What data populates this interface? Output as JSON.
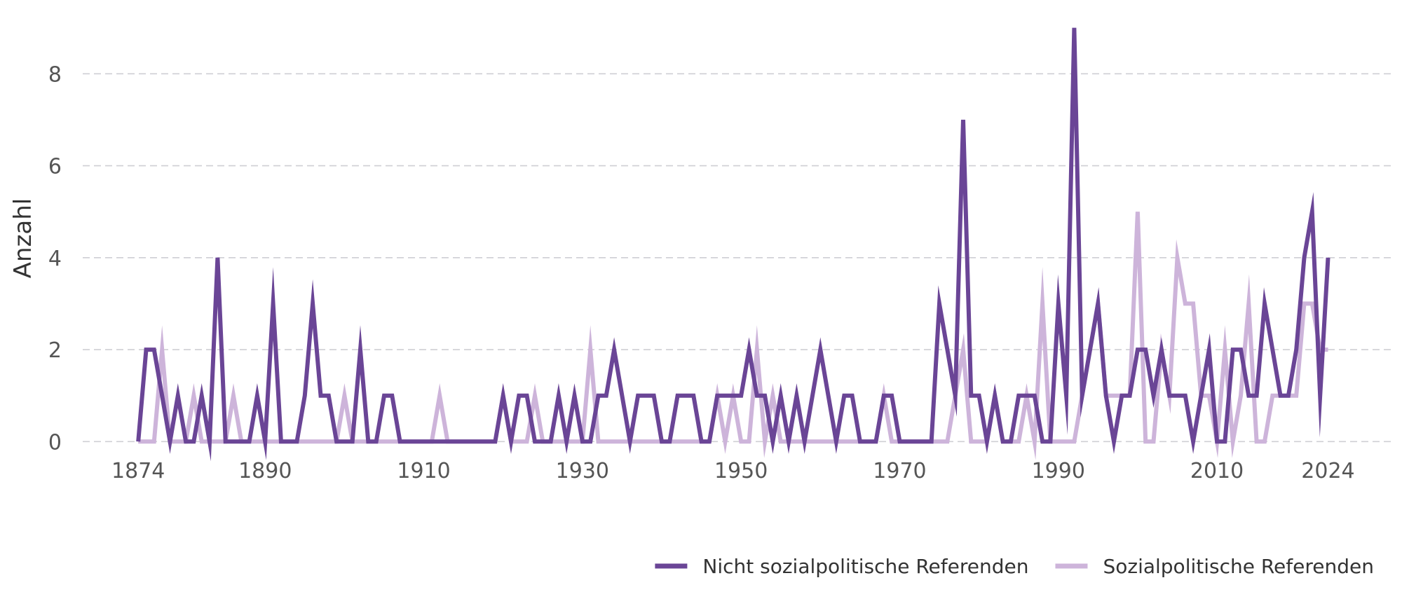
{
  "chart_data": {
    "type": "line",
    "title": "",
    "xlabel": "",
    "ylabel": "Anzahl",
    "xlim": [
      1867,
      2032
    ],
    "ylim": [
      -0.3,
      9.3
    ],
    "x_ticks": [
      1874,
      1890,
      1910,
      1930,
      1950,
      1970,
      1990,
      2010,
      2024
    ],
    "y_ticks": [
      0,
      2,
      4,
      6,
      8
    ],
    "grid": "horizontal-dashed",
    "legend_position": "bottom-right",
    "x": [
      1874,
      1875,
      1876,
      1877,
      1878,
      1879,
      1880,
      1881,
      1882,
      1883,
      1884,
      1885,
      1886,
      1887,
      1888,
      1889,
      1890,
      1891,
      1892,
      1893,
      1894,
      1895,
      1896,
      1897,
      1898,
      1899,
      1900,
      1901,
      1902,
      1903,
      1904,
      1905,
      1906,
      1907,
      1908,
      1909,
      1910,
      1911,
      1912,
      1913,
      1914,
      1915,
      1916,
      1917,
      1918,
      1919,
      1920,
      1921,
      1922,
      1923,
      1924,
      1925,
      1926,
      1927,
      1928,
      1929,
      1930,
      1931,
      1932,
      1933,
      1934,
      1935,
      1936,
      1937,
      1938,
      1939,
      1940,
      1941,
      1942,
      1943,
      1944,
      1945,
      1946,
      1947,
      1948,
      1949,
      1950,
      1951,
      1952,
      1953,
      1954,
      1955,
      1956,
      1957,
      1958,
      1959,
      1960,
      1961,
      1962,
      1963,
      1964,
      1965,
      1966,
      1967,
      1968,
      1969,
      1970,
      1971,
      1972,
      1973,
      1974,
      1975,
      1976,
      1977,
      1978,
      1979,
      1980,
      1981,
      1982,
      1983,
      1984,
      1985,
      1986,
      1987,
      1988,
      1989,
      1990,
      1991,
      1992,
      1993,
      1994,
      1995,
      1996,
      1997,
      1998,
      1999,
      2000,
      2001,
      2002,
      2003,
      2004,
      2005,
      2006,
      2007,
      2008,
      2009,
      2010,
      2011,
      2012,
      2013,
      2014,
      2015,
      2016,
      2017,
      2018,
      2019,
      2020,
      2021,
      2022,
      2023,
      2024
    ],
    "series": [
      {
        "name": "Nicht sozialpolitische Referenden",
        "color": "#6a4596",
        "values": [
          0,
          2,
          2,
          1,
          0,
          1,
          0,
          0,
          1,
          0,
          4,
          0,
          0,
          0,
          0,
          1,
          0,
          3,
          0,
          0,
          0,
          1,
          3,
          1,
          1,
          0,
          0,
          0,
          2,
          0,
          0,
          1,
          1,
          0,
          0,
          0,
          0,
          0,
          0,
          0,
          0,
          0,
          0,
          0,
          0,
          0,
          1,
          0,
          1,
          1,
          0,
          0,
          0,
          1,
          0,
          1,
          0,
          0,
          1,
          1,
          2,
          1,
          0,
          1,
          1,
          1,
          0,
          0,
          1,
          1,
          1,
          0,
          0,
          1,
          1,
          1,
          1,
          2,
          1,
          1,
          0,
          1,
          0,
          1,
          0,
          1,
          2,
          1,
          0,
          1,
          1,
          0,
          0,
          0,
          1,
          1,
          0,
          0,
          0,
          0,
          0,
          3,
          2,
          1,
          7,
          1,
          1,
          0,
          1,
          0,
          0,
          1,
          1,
          1,
          0,
          0,
          3,
          1,
          9,
          1,
          2,
          3,
          1,
          0,
          1,
          1,
          2,
          2,
          1,
          2,
          1,
          1,
          1,
          0,
          1,
          2,
          0,
          0,
          2,
          2,
          1,
          1,
          3,
          2,
          1,
          1,
          2,
          4,
          5,
          1,
          4
        ]
      },
      {
        "name": "Sozialpolitische Referenden",
        "color": "#cdb4da",
        "values": [
          0,
          0,
          0,
          2,
          0,
          0,
          0,
          1,
          0,
          0,
          0,
          0,
          1,
          0,
          0,
          0,
          0,
          0,
          0,
          0,
          0,
          0,
          0,
          0,
          0,
          0,
          1,
          0,
          0,
          0,
          0,
          0,
          0,
          0,
          0,
          0,
          0,
          0,
          1,
          0,
          0,
          0,
          0,
          0,
          0,
          0,
          1,
          0,
          0,
          0,
          1,
          0,
          0,
          0,
          0,
          0,
          0,
          2,
          0,
          0,
          0,
          0,
          0,
          0,
          0,
          0,
          0,
          0,
          0,
          0,
          0,
          0,
          0,
          1,
          0,
          1,
          0,
          0,
          2,
          0,
          1,
          0,
          0,
          0,
          0,
          0,
          0,
          0,
          0,
          0,
          0,
          0,
          0,
          0,
          1,
          0,
          0,
          0,
          0,
          0,
          0,
          0,
          0,
          1,
          2,
          0,
          0,
          0,
          1,
          0,
          0,
          0,
          1,
          0,
          3,
          0,
          0,
          0,
          0,
          1,
          2,
          3,
          1,
          1,
          1,
          1,
          5,
          0,
          0,
          2,
          1,
          4,
          3,
          3,
          1,
          1,
          0,
          2,
          0,
          1,
          3,
          0,
          0,
          1,
          1,
          1,
          1,
          3,
          3,
          2,
          2
        ]
      }
    ]
  }
}
